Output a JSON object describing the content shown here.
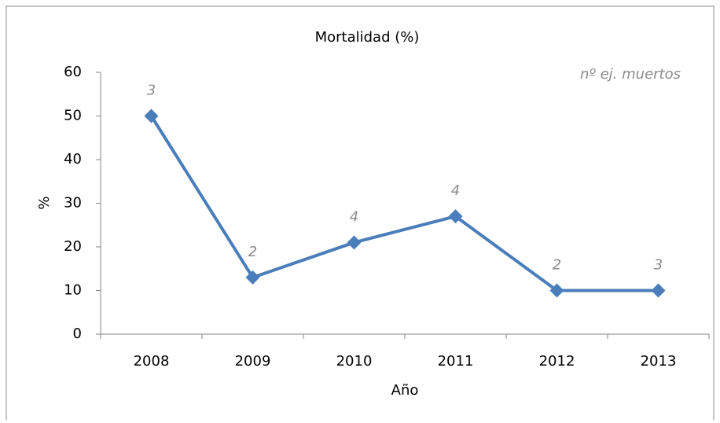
{
  "chart_data": {
    "type": "line",
    "title": "Mortalidad (%)",
    "y_label": "%",
    "x_label": "Año",
    "categories": [
      "2008",
      "2009",
      "2010",
      "2011",
      "2012",
      "2013"
    ],
    "series": [
      {
        "name": "Mortalidad",
        "color": "#4a7ebb",
        "values": [
          50,
          13,
          21,
          27,
          10,
          10
        ]
      }
    ],
    "point_annotations": {
      "label": "nº ej. muertos",
      "values": [
        3,
        2,
        4,
        4,
        2,
        3
      ]
    },
    "ylim": [
      0,
      60
    ],
    "yticks": [
      0,
      10,
      20,
      30,
      40,
      50,
      60
    ],
    "grid": false,
    "legend": false
  }
}
